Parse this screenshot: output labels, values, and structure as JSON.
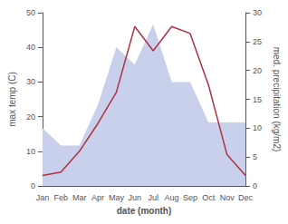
{
  "chart_data": {
    "type": "line",
    "xlabel": "date (month)",
    "ylabel": "max temp (C)",
    "y2label": "med. precipitation (kg/m2)",
    "categories": [
      "Jan",
      "Feb",
      "Mar",
      "Apr",
      "May",
      "Jun",
      "Jul",
      "Aug",
      "Sep",
      "Oct",
      "Nov",
      "Dec"
    ],
    "series": [
      {
        "type": "area",
        "color": "#c8d0ec",
        "axis": "y2",
        "values": [
          10,
          7,
          7,
          14,
          24,
          21,
          28,
          18,
          18,
          11,
          11,
          11
        ]
      },
      {
        "type": "line",
        "color": "#b03040",
        "values": [
          3,
          4,
          10,
          18,
          27,
          46,
          39,
          46,
          44,
          29,
          9,
          3
        ]
      }
    ],
    "ylim": [
      0,
      50
    ],
    "yticks": [
      0,
      10,
      20,
      30,
      40,
      50
    ],
    "y2lim": [
      0,
      30
    ],
    "y2ticks": [
      0,
      5,
      10,
      15,
      20,
      25,
      30
    ],
    "grid": false
  }
}
